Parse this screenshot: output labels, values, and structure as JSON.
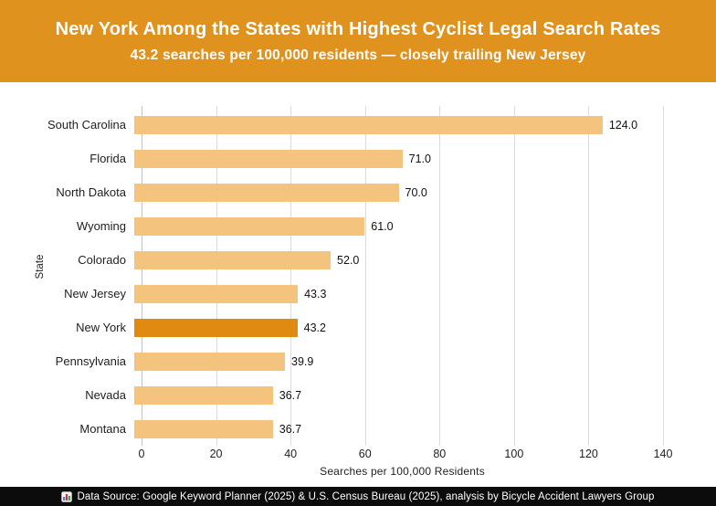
{
  "header": {
    "title": "New York Among the States with Highest Cyclist Legal Search Rates",
    "subtitle": "43.2 searches per 100,000 residents — closely trailing New Jersey",
    "bg_color": "#E0921F",
    "text_color": "#FFFFFF"
  },
  "chart_data": {
    "type": "bar",
    "orientation": "horizontal",
    "categories": [
      "South Carolina",
      "Florida",
      "North Dakota",
      "Wyoming",
      "Colorado",
      "New Jersey",
      "New York",
      "Pennsylvania",
      "Nevada",
      "Montana"
    ],
    "values": [
      124.0,
      71.0,
      70.0,
      61.0,
      52.0,
      43.3,
      43.2,
      39.9,
      36.7,
      36.7
    ],
    "value_labels": [
      "124.0",
      "71.0",
      "70.0",
      "61.0",
      "52.0",
      "43.3",
      "43.2",
      "39.9",
      "36.7",
      "36.7"
    ],
    "highlight_category": "New York",
    "bar_color": "#F4C47E",
    "highlight_color": "#E08A12",
    "xlabel": "Searches per 100,000 Residents",
    "ylabel": "State",
    "xlim": [
      0,
      140
    ],
    "xticks": [
      0,
      20,
      40,
      60,
      80,
      100,
      120,
      140
    ],
    "grid": "vertical"
  },
  "footer": {
    "icon": "bar-chart-icon",
    "text": "Data Source: Google Keyword Planner (2025) & U.S. Census Bureau (2025), analysis by Bicycle Accident Lawyers Group",
    "bg_color": "#0C0C0C"
  }
}
